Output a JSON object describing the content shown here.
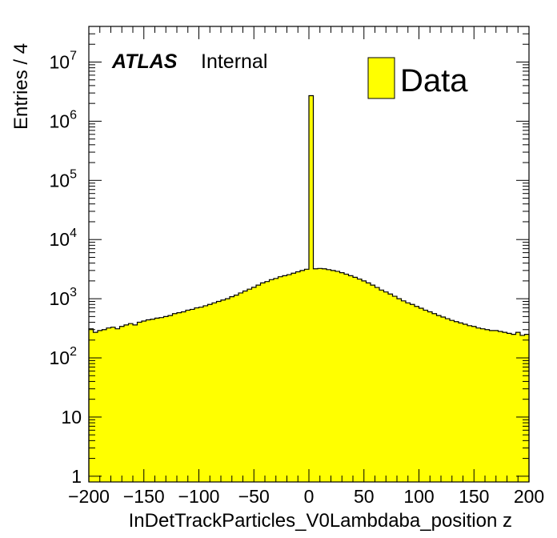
{
  "chart_data": {
    "type": "bar",
    "histogram": true,
    "xlabel": "InDetTrackParticles_V0Lambdaba_position z",
    "ylabel": "Entries / 4",
    "log_y": true,
    "xlim": [
      -200,
      200
    ],
    "ylim": [
      0.8,
      40000000
    ],
    "bin_width": 4,
    "bin_edges_start": -200,
    "x_ticks": [
      "−200",
      "−150",
      "−100",
      "−50",
      "0",
      "50",
      "100",
      "150",
      "200"
    ],
    "x_tick_values": [
      -200,
      -150,
      -100,
      -50,
      0,
      50,
      100,
      150,
      200
    ],
    "y_ticks": [
      {
        "value": 1,
        "base": "1",
        "exp": ""
      },
      {
        "value": 10,
        "base": "10",
        "exp": ""
      },
      {
        "value": 100,
        "base": "10",
        "exp": "2"
      },
      {
        "value": 1000,
        "base": "10",
        "exp": "3"
      },
      {
        "value": 10000,
        "base": "10",
        "exp": "4"
      },
      {
        "value": 100000,
        "base": "10",
        "exp": "5"
      },
      {
        "value": 1000000,
        "base": "10",
        "exp": "6"
      },
      {
        "value": 10000000,
        "base": "10",
        "exp": "7"
      }
    ],
    "series": [
      {
        "name": "Data",
        "color": "#ffff00",
        "line_color": "#000000",
        "values": [
          310,
          270,
          290,
          300,
          320,
          330,
          310,
          340,
          360,
          380,
          360,
          400,
          420,
          440,
          450,
          470,
          480,
          500,
          520,
          560,
          580,
          600,
          640,
          660,
          700,
          720,
          760,
          800,
          850,
          900,
          950,
          1000,
          1080,
          1150,
          1250,
          1350,
          1450,
          1560,
          1700,
          1850,
          1950,
          2100,
          2200,
          2350,
          2450,
          2550,
          2700,
          2850,
          3000,
          3150,
          2700000,
          3200,
          3250,
          3200,
          3100,
          3000,
          2900,
          2750,
          2600,
          2450,
          2300,
          2150,
          2000,
          1850,
          1700,
          1550,
          1400,
          1300,
          1200,
          1100,
          1000,
          920,
          850,
          800,
          740,
          690,
          640,
          600,
          560,
          520,
          490,
          460,
          430,
          410,
          390,
          370,
          350,
          340,
          320,
          310,
          300,
          290,
          290,
          280,
          270,
          260,
          250,
          270,
          240,
          250
        ]
      }
    ]
  },
  "annotations": {
    "atlas_label": "ATLAS",
    "atlas_sub": "Internal"
  },
  "legend": {
    "entries": [
      {
        "label": "Data",
        "color": "#ffff00"
      }
    ],
    "position": "top-right"
  }
}
